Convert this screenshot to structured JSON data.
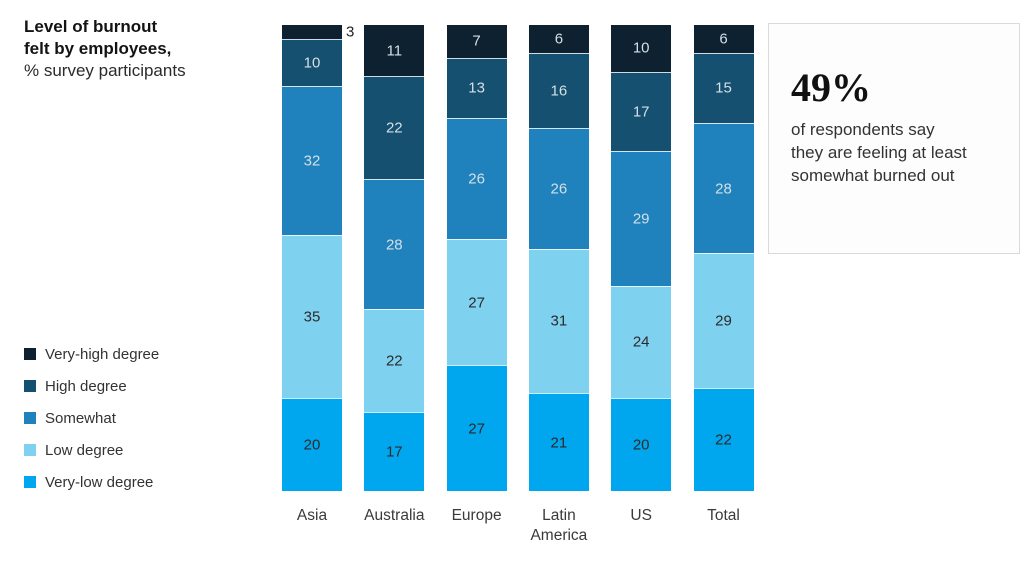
{
  "title": {
    "line1": "Level of burnout",
    "line2": "felt by employees,",
    "subtitle": "% survey participants"
  },
  "callout": {
    "stat": "49%",
    "text": "of respondents say they are feeling at least somewhat burned out"
  },
  "chart_data": {
    "type": "bar",
    "stacked": true,
    "title": "Level of burnout felt by employees, % survey participants",
    "categories": [
      "Asia",
      "Australia",
      "Europe",
      "Latin America",
      "US",
      "Total"
    ],
    "series": [
      {
        "name": "Very-high degree",
        "color": "#0d2130",
        "values": [
          3,
          11,
          7,
          6,
          10,
          6
        ]
      },
      {
        "name": "High degree",
        "color": "#155070",
        "values": [
          10,
          22,
          13,
          16,
          17,
          15
        ]
      },
      {
        "name": "Somewhat",
        "color": "#1f82bd",
        "values": [
          32,
          28,
          26,
          26,
          29,
          28
        ]
      },
      {
        "name": "Low degree",
        "color": "#7fd1f0",
        "values": [
          35,
          22,
          27,
          31,
          24,
          29
        ]
      },
      {
        "name": "Very-low degree",
        "color": "#00a6ee",
        "values": [
          20,
          17,
          27,
          21,
          20,
          22
        ]
      }
    ],
    "value_labels": true,
    "ylim": [
      0,
      100
    ],
    "legend_position": "bottom-left",
    "grid": false,
    "y_axis_visible": false,
    "label_colors": {
      "on_dark": "#d5dfe5",
      "on_light": "#2b2b2b",
      "outside": "#222222"
    }
  }
}
